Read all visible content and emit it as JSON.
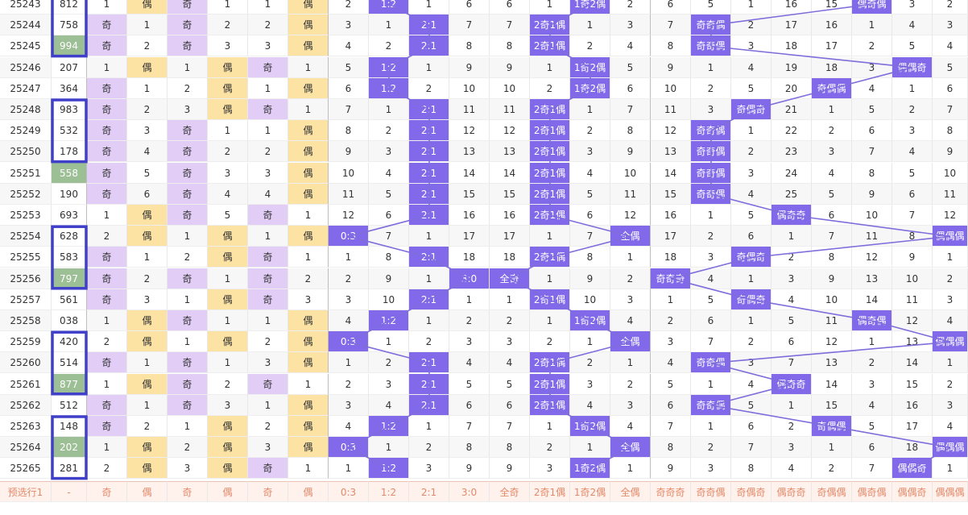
{
  "chart_data": {
    "type": "table",
    "columns": 24,
    "rows": [
      {
        "id": "25243",
        "draw": "812",
        "c": [
          "1",
          "偶",
          "奇",
          "1",
          "1",
          "偶",
          "2",
          "1:2",
          "1",
          "6",
          "6",
          "1",
          "1奇2偶",
          "2",
          "6",
          "5",
          "1",
          "16",
          "15",
          "偶奇偶",
          "3",
          "2"
        ]
      },
      {
        "id": "25244",
        "draw": "758",
        "c": [
          "奇",
          "1",
          "奇",
          "2",
          "2",
          "偶",
          "3",
          "1",
          "2:1",
          "7",
          "7",
          "2奇1偶",
          "1",
          "3",
          "7",
          "奇奇偶",
          "2",
          "17",
          "16",
          "1",
          "4",
          "3"
        ]
      },
      {
        "id": "25245",
        "draw": "994",
        "c": [
          "奇",
          "2",
          "奇",
          "3",
          "3",
          "偶",
          "4",
          "2",
          "2:1",
          "8",
          "8",
          "2奇1偶",
          "2",
          "4",
          "8",
          "奇奇偶",
          "3",
          "18",
          "17",
          "2",
          "5",
          "4"
        ]
      },
      {
        "id": "25246",
        "draw": "207",
        "c": [
          "1",
          "偶",
          "1",
          "偶",
          "奇",
          "1",
          "5",
          "1:2",
          "1",
          "9",
          "9",
          "1",
          "1奇2偶",
          "5",
          "9",
          "1",
          "4",
          "19",
          "18",
          "3",
          "偶偶奇",
          "5"
        ]
      },
      {
        "id": "25247",
        "draw": "364",
        "c": [
          "奇",
          "1",
          "2",
          "偶",
          "1",
          "偶",
          "6",
          "1:2",
          "2",
          "10",
          "10",
          "2",
          "1奇2偶",
          "6",
          "10",
          "2",
          "5",
          "20",
          "奇偶偶",
          "4",
          "1",
          "6"
        ]
      },
      {
        "id": "25248",
        "draw": "983",
        "c": [
          "奇",
          "2",
          "3",
          "偶",
          "奇",
          "1",
          "7",
          "1",
          "2:1",
          "11",
          "11",
          "2奇1偶",
          "1",
          "7",
          "11",
          "3",
          "奇偶奇",
          "21",
          "1",
          "5",
          "2",
          "7"
        ]
      },
      {
        "id": "25249",
        "draw": "532",
        "c": [
          "奇",
          "3",
          "奇",
          "1",
          "1",
          "偶",
          "8",
          "2",
          "2:1",
          "12",
          "12",
          "2奇1偶",
          "2",
          "8",
          "12",
          "奇奇偶",
          "1",
          "22",
          "2",
          "6",
          "3",
          "8"
        ]
      },
      {
        "id": "25250",
        "draw": "178",
        "c": [
          "奇",
          "4",
          "奇",
          "2",
          "2",
          "偶",
          "9",
          "3",
          "2:1",
          "13",
          "13",
          "2奇1偶",
          "3",
          "9",
          "13",
          "奇奇偶",
          "2",
          "23",
          "3",
          "7",
          "4",
          "9"
        ]
      },
      {
        "id": "25251",
        "draw": "558",
        "c": [
          "奇",
          "5",
          "奇",
          "3",
          "3",
          "偶",
          "10",
          "4",
          "2:1",
          "14",
          "14",
          "2奇1偶",
          "4",
          "10",
          "14",
          "奇奇偶",
          "3",
          "24",
          "4",
          "8",
          "5",
          "10"
        ]
      },
      {
        "id": "25252",
        "draw": "190",
        "c": [
          "奇",
          "6",
          "奇",
          "4",
          "4",
          "偶",
          "11",
          "5",
          "2:1",
          "15",
          "15",
          "2奇1偶",
          "5",
          "11",
          "15",
          "奇奇偶",
          "4",
          "25",
          "5",
          "9",
          "6",
          "11"
        ]
      },
      {
        "id": "25253",
        "draw": "693",
        "c": [
          "1",
          "偶",
          "奇",
          "5",
          "奇",
          "1",
          "12",
          "6",
          "2:1",
          "16",
          "16",
          "2奇1偶",
          "6",
          "12",
          "16",
          "1",
          "5",
          "偶奇奇",
          "6",
          "10",
          "7",
          "12"
        ]
      },
      {
        "id": "25254",
        "draw": "628",
        "c": [
          "2",
          "偶",
          "1",
          "偶",
          "1",
          "偶",
          "0:3",
          "7",
          "1",
          "17",
          "17",
          "1",
          "7",
          "全偶",
          "17",
          "2",
          "6",
          "1",
          "7",
          "11",
          "8",
          "偶偶偶"
        ]
      },
      {
        "id": "25255",
        "draw": "583",
        "c": [
          "奇",
          "1",
          "2",
          "偶",
          "奇",
          "1",
          "1",
          "8",
          "2:1",
          "18",
          "18",
          "2奇1偶",
          "8",
          "1",
          "18",
          "3",
          "奇偶奇",
          "2",
          "8",
          "12",
          "9",
          "1"
        ]
      },
      {
        "id": "25256",
        "draw": "797",
        "c": [
          "奇",
          "2",
          "奇",
          "1",
          "奇",
          "2",
          "2",
          "9",
          "1",
          "3:0",
          "全奇",
          "1",
          "9",
          "2",
          "奇奇奇",
          "4",
          "1",
          "3",
          "9",
          "13",
          "10",
          "2"
        ]
      },
      {
        "id": "25257",
        "draw": "561",
        "c": [
          "奇",
          "3",
          "1",
          "偶",
          "奇",
          "3",
          "3",
          "10",
          "2:1",
          "1",
          "1",
          "2奇1偶",
          "10",
          "3",
          "1",
          "5",
          "奇偶奇",
          "4",
          "10",
          "14",
          "11",
          "3"
        ]
      },
      {
        "id": "25258",
        "draw": "038",
        "c": [
          "1",
          "偶",
          "奇",
          "1",
          "1",
          "偶",
          "4",
          "1:2",
          "1",
          "2",
          "2",
          "1",
          "1奇2偶",
          "4",
          "2",
          "6",
          "1",
          "5",
          "11",
          "偶奇偶",
          "12",
          "4"
        ]
      },
      {
        "id": "25259",
        "draw": "420",
        "c": [
          "2",
          "偶",
          "1",
          "偶",
          "2",
          "偶",
          "0:3",
          "1",
          "2",
          "3",
          "3",
          "2",
          "1",
          "全偶",
          "3",
          "7",
          "2",
          "6",
          "12",
          "1",
          "13",
          "偶偶偶"
        ]
      },
      {
        "id": "25260",
        "draw": "514",
        "c": [
          "奇",
          "1",
          "奇",
          "1",
          "3",
          "偶",
          "1",
          "2",
          "2:1",
          "4",
          "4",
          "2奇1偶",
          "2",
          "1",
          "4",
          "奇奇偶",
          "3",
          "7",
          "13",
          "2",
          "14",
          "1"
        ]
      },
      {
        "id": "25261",
        "draw": "877",
        "c": [
          "1",
          "偶",
          "奇",
          "2",
          "奇",
          "1",
          "2",
          "3",
          "2:1",
          "5",
          "5",
          "2奇1偶",
          "3",
          "2",
          "5",
          "1",
          "4",
          "偶奇奇",
          "14",
          "3",
          "15",
          "2"
        ]
      },
      {
        "id": "25262",
        "draw": "512",
        "c": [
          "奇",
          "1",
          "奇",
          "3",
          "1",
          "偶",
          "3",
          "4",
          "2:1",
          "6",
          "6",
          "2奇1偶",
          "4",
          "3",
          "6",
          "奇奇偶",
          "5",
          "1",
          "15",
          "4",
          "16",
          "3"
        ]
      },
      {
        "id": "25263",
        "draw": "148",
        "c": [
          "奇",
          "2",
          "1",
          "偶",
          "2",
          "偶",
          "4",
          "1:2",
          "1",
          "7",
          "7",
          "1",
          "1奇2偶",
          "4",
          "7",
          "1",
          "6",
          "2",
          "奇偶偶",
          "5",
          "17",
          "4"
        ]
      },
      {
        "id": "25264",
        "draw": "202",
        "c": [
          "1",
          "偶",
          "2",
          "偶",
          "3",
          "偶",
          "0:3",
          "1",
          "2",
          "8",
          "8",
          "2",
          "1",
          "全偶",
          "8",
          "2",
          "7",
          "3",
          "1",
          "6",
          "18",
          "偶偶偶"
        ]
      },
      {
        "id": "25265",
        "draw": "281",
        "c": [
          "2",
          "偶",
          "3",
          "偶",
          "奇",
          "1",
          "1",
          "1:2",
          "3",
          "9",
          "9",
          "3",
          "1奇2偶",
          "1",
          "9",
          "3",
          "8",
          "4",
          "2",
          "7",
          "偶偶奇",
          "1"
        ]
      }
    ],
    "footer": {
      "label": "预选行1",
      "draw": "-",
      "c": [
        "奇",
        "偶",
        "奇",
        "偶",
        "奇",
        "偶",
        "0:3",
        "1:2",
        "2:1",
        "3:0",
        "全奇",
        "2奇1偶",
        "1奇2偶",
        "全偶",
        "奇奇奇",
        "奇奇偶",
        "奇偶奇",
        "偶奇奇",
        "奇偶偶",
        "偶奇偶",
        "偶偶奇",
        "偶偶偶"
      ]
    }
  }
}
